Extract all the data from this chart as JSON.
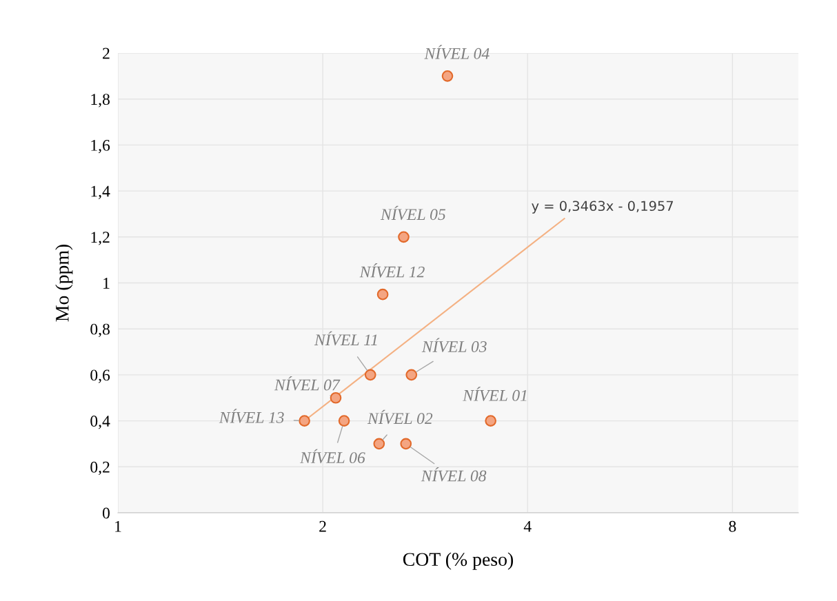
{
  "chart_data": {
    "type": "scatter",
    "xlabel": "COT (% peso)",
    "ylabel": "Mo (ppm)",
    "log": "x",
    "xlim": [
      1,
      10
    ],
    "xticks": [
      1,
      2,
      4,
      8
    ],
    "ylim": [
      0,
      2
    ],
    "yticks": [
      0,
      {
        "value": 0.2,
        "label": "0,2"
      },
      {
        "value": 0.4,
        "label": "0,4"
      },
      {
        "value": 0.6,
        "label": "0,6"
      },
      {
        "value": 0.8,
        "label": "0,8"
      },
      1,
      {
        "value": 1.2,
        "label": "1,2"
      },
      {
        "value": 1.4,
        "label": "1,4"
      },
      {
        "value": 1.6,
        "label": "1,6"
      },
      {
        "value": 1.8,
        "label": "1,8"
      },
      2
    ],
    "grid": true,
    "series": [
      {
        "marker": "circle",
        "color": "#f4a582",
        "x": [
          3.53,
          2.42,
          2.7,
          3.05,
          2.63,
          2.15,
          2.09,
          2.65,
          2.35,
          2.45,
          1.88
        ],
        "values": [
          0.4,
          0.3,
          0.6,
          1.9,
          1.2,
          0.4,
          0.5,
          0.3,
          0.6,
          0.95,
          0.4
        ]
      },
      {
        "type": "line",
        "marker": "none",
        "color": "#f4b183",
        "x": [
          1.88,
          4.53
        ],
        "values": [
          0.4,
          1.28
        ]
      }
    ],
    "annotations": [
      {
        "text": "NÍVEL 01",
        "x": 3.53,
        "y": 0.4
      },
      {
        "text": "NÍVEL 02",
        "x": 2.42,
        "y": 0.3
      },
      {
        "text": "NÍVEL 03",
        "x": 2.7,
        "y": 0.6
      },
      {
        "text": "NÍVEL 04",
        "x": 3.05,
        "y": 1.9
      },
      {
        "text": "NÍVEL 05",
        "x": 2.63,
        "y": 1.2
      },
      {
        "text": "NÍVEL 06",
        "x": 2.15,
        "y": 0.4
      },
      {
        "text": "NÍVEL 07",
        "x": 2.09,
        "y": 0.5
      },
      {
        "text": "NÍVEL 08",
        "x": 2.65,
        "y": 0.3
      },
      {
        "text": "NÍVEL 11",
        "x": 2.35,
        "y": 0.6
      },
      {
        "text": "NÍVEL 12",
        "x": 2.45,
        "y": 0.95
      },
      {
        "text": "NÍVEL 13",
        "x": 1.88,
        "y": 0.4
      },
      {
        "text": "y = 0,3463x - 0,1957",
        "x": 4.53,
        "y": 1.28
      }
    ]
  }
}
